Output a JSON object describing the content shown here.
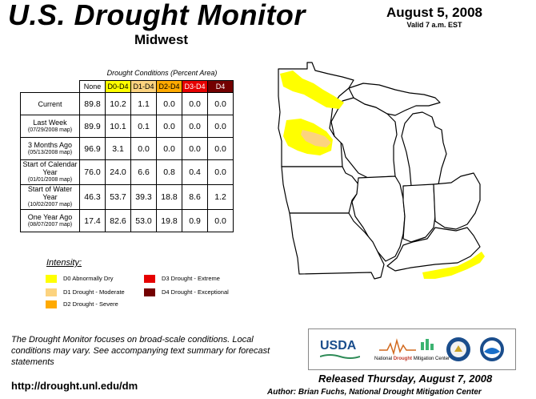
{
  "title": "U.S. Drought Monitor",
  "region": "Midwest",
  "date": "August 5, 2008",
  "valid": "Valid 7 a.m. EST",
  "table": {
    "caption": "Drought Conditions (Percent Area)",
    "columns": [
      "None",
      "D0-D4",
      "D1-D4",
      "D2-D4",
      "D3-D4",
      "D4"
    ],
    "column_colors": [
      "#ffffff",
      "#ffff00",
      "#fcd37f",
      "#ffaa00",
      "#e60000",
      "#730000"
    ],
    "column_text_colors": [
      "#000000",
      "#000000",
      "#000000",
      "#000000",
      "#ffffff",
      "#ffffff"
    ],
    "rows": [
      {
        "label": "Current",
        "sub": "",
        "values": [
          "89.8",
          "10.2",
          "1.1",
          "0.0",
          "0.0",
          "0.0"
        ]
      },
      {
        "label": "Last Week",
        "sub": "(07/29/2008 map)",
        "values": [
          "89.9",
          "10.1",
          "0.1",
          "0.0",
          "0.0",
          "0.0"
        ]
      },
      {
        "label": "3 Months Ago",
        "sub": "(05/13/2008 map)",
        "values": [
          "96.9",
          "3.1",
          "0.0",
          "0.0",
          "0.0",
          "0.0"
        ]
      },
      {
        "label": "Start of Calendar Year",
        "sub": "(01/01/2008 map)",
        "values": [
          "76.0",
          "24.0",
          "6.6",
          "0.8",
          "0.4",
          "0.0"
        ]
      },
      {
        "label": "Start of Water Year",
        "sub": "(10/02/2007 map)",
        "values": [
          "46.3",
          "53.7",
          "39.3",
          "18.8",
          "8.6",
          "1.2"
        ]
      },
      {
        "label": "One Year Ago",
        "sub": "(08/07/2007 map)",
        "values": [
          "17.4",
          "82.6",
          "53.0",
          "19.8",
          "0.9",
          "0.0"
        ]
      }
    ]
  },
  "legend": {
    "title": "Intensity:",
    "items": [
      {
        "label": "D0 Abnormally Dry",
        "color": "#ffff00"
      },
      {
        "label": "D1 Drought - Moderate",
        "color": "#fcd37f"
      },
      {
        "label": "D2 Drought - Severe",
        "color": "#ffaa00"
      },
      {
        "label": "D3 Drought - Extreme",
        "color": "#e60000"
      },
      {
        "label": "D4 Drought - Exceptional",
        "color": "#730000"
      }
    ]
  },
  "note": "The Drought Monitor focuses on broad-scale conditions. Local conditions may vary. See accompanying text summary for forecast statements",
  "url": "http://drought.unl.edu/dm",
  "released": "Released Thursday, August 7, 2008",
  "author": "Author: Brian Fuchs, National Drought Mitigation Center",
  "logos": {
    "usda": "USDA",
    "ndmc_prefix": "National",
    "ndmc_drought": "Drought",
    "ndmc_suffix": "Mitigation Center"
  }
}
